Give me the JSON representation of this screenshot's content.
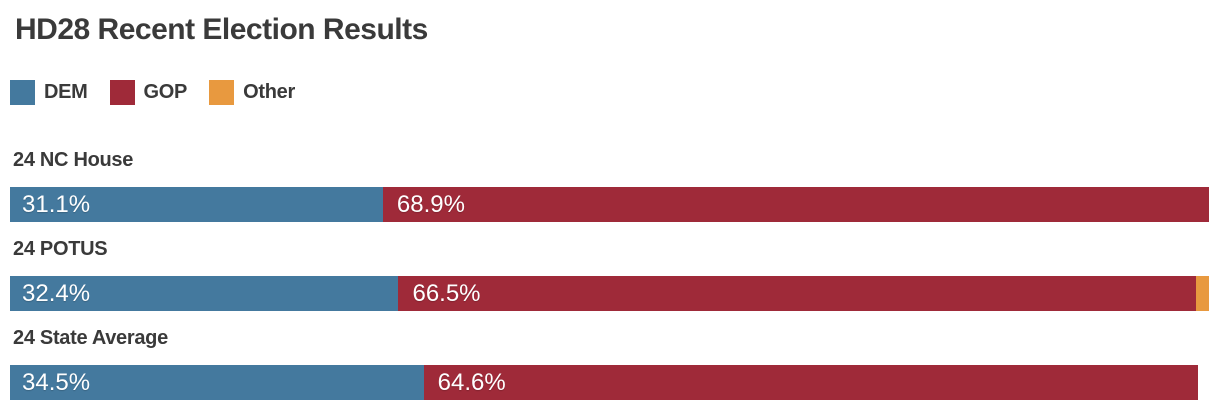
{
  "title": "HD28 Recent Election Results",
  "colors": {
    "dem": "#44799e",
    "gop": "#9f2a39",
    "other": "#e8993f",
    "heading_text": "#3a3a3a",
    "bar_value_text": "#ffffff",
    "background": "#ffffff"
  },
  "legend": {
    "position": "top-left",
    "items": [
      {
        "label": "DEM",
        "color": "#44799e"
      },
      {
        "label": "GOP",
        "color": "#9f2a39"
      },
      {
        "label": "Other",
        "color": "#e8993f"
      }
    ]
  },
  "chart_data": {
    "type": "bar",
    "orientation": "horizontal-stacked",
    "title": "HD28 Recent Election Results",
    "unit": "percent",
    "xlim": [
      0,
      100
    ],
    "grid": false,
    "axis_ticks_visible": false,
    "categories": [
      "24 NC House",
      "24 POTUS",
      "24 State Average"
    ],
    "series": [
      {
        "name": "DEM",
        "color": "#44799e",
        "values": [
          31.1,
          32.4,
          34.5
        ]
      },
      {
        "name": "GOP",
        "color": "#9f2a39",
        "values": [
          68.9,
          66.5,
          64.6
        ]
      },
      {
        "name": "Other",
        "color": "#e8993f",
        "values": [
          0,
          1.1,
          0
        ]
      }
    ],
    "rows": [
      {
        "label": "24 NC House",
        "dem": 31.1,
        "gop": 68.9,
        "other": 0,
        "dem_label": "31.1%",
        "gop_label": "68.9%"
      },
      {
        "label": "24 POTUS",
        "dem": 32.4,
        "gop": 66.5,
        "other": 1.1,
        "dem_label": "32.4%",
        "gop_label": "66.5%"
      },
      {
        "label": "24 State Average",
        "dem": 34.5,
        "gop": 64.6,
        "other": 0,
        "dem_label": "34.5%",
        "gop_label": "64.6%"
      }
    ]
  }
}
